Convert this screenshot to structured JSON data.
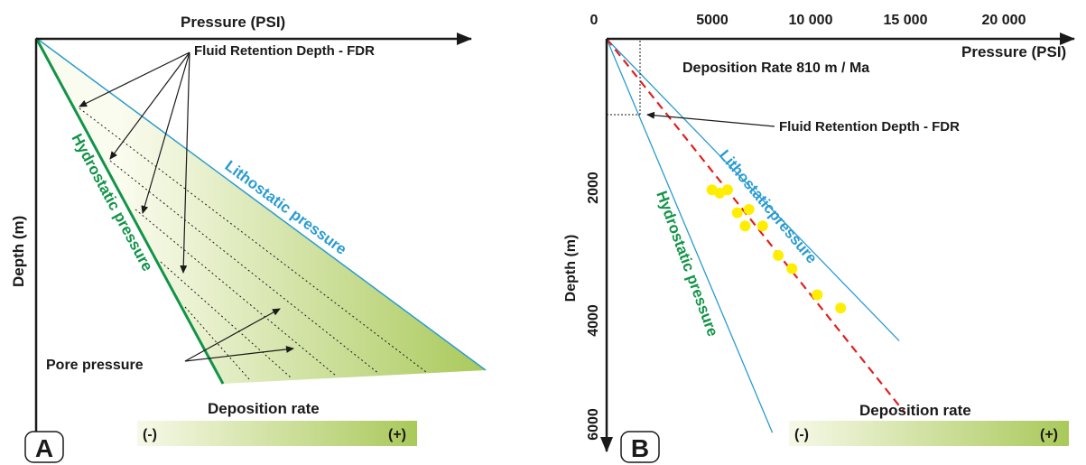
{
  "colors": {
    "hydrostatic": "#119447",
    "lithostatic": "#2a9bd0",
    "fdr_line": "#e02020",
    "data_points": "#ffee00",
    "gradient_light": "#f7f9e8",
    "gradient_dark": "#a9c95a",
    "text": "#1a1a1a"
  },
  "panel_a": {
    "letter": "A",
    "x_axis_label": "Pressure (PSI)",
    "y_axis_label": "Depth (m)",
    "hydrostatic_label": "Hydrostatic pressure",
    "lithostatic_label": "Lithostatic pressure",
    "fdr_label": "Fluid Retention Depth - FDR",
    "pore_label": "Pore pressure",
    "deposition_label": "Deposition rate",
    "scale_minus": "(-)",
    "scale_plus": "(+)"
  },
  "panel_b": {
    "letter": "B",
    "x_axis_label": "Pressure (PSI)",
    "y_axis_label": "Depth (m)",
    "deposition_rate_text": "Deposition Rate 810 m / Ma",
    "hydrostatic_label": "Hydrostatic pressure",
    "lithostatic_label": "Lithostaticpressure",
    "fdr_label": "Fluid Retention Depth - FDR",
    "deposition_label": "Deposition rate",
    "scale_minus": "(-)",
    "scale_plus": "(+)",
    "x_ticks": [
      "0",
      "5000",
      "10 000",
      "15 000",
      "20 000"
    ],
    "y_ticks": [
      "2000",
      "4000",
      "6000"
    ]
  },
  "chart_data": {
    "type": "scatter",
    "xlabel": "Pressure (PSI)",
    "ylabel": "Depth (m)",
    "xlim": [
      0,
      22000
    ],
    "ylim": [
      0,
      6000
    ],
    "x_ticks": [
      0,
      5000,
      10000,
      15000,
      20000
    ],
    "y_ticks": [
      2000,
      4000,
      6000
    ],
    "series": [
      {
        "name": "Hydrostatic pressure",
        "type": "line",
        "x": [
          0,
          8500
        ],
        "y": [
          0,
          6000
        ]
      },
      {
        "name": "Lithostaticpressure",
        "type": "line",
        "x": [
          0,
          15000
        ],
        "y": [
          0,
          4600
        ]
      },
      {
        "x": [
          0,
          15300
        ],
        "y": [
          0,
          5700
        ]
      },
      {
        "x": [
          5400,
          5800,
          6200,
          6700,
          7100,
          7300,
          8000,
          8800,
          9500,
          10800,
          12000
        ],
        "y": [
          2300,
          2350,
          2300,
          2650,
          2850,
          2600,
          2850,
          3300,
          3500,
          3900,
          4100
        ]
      }
    ]
  }
}
